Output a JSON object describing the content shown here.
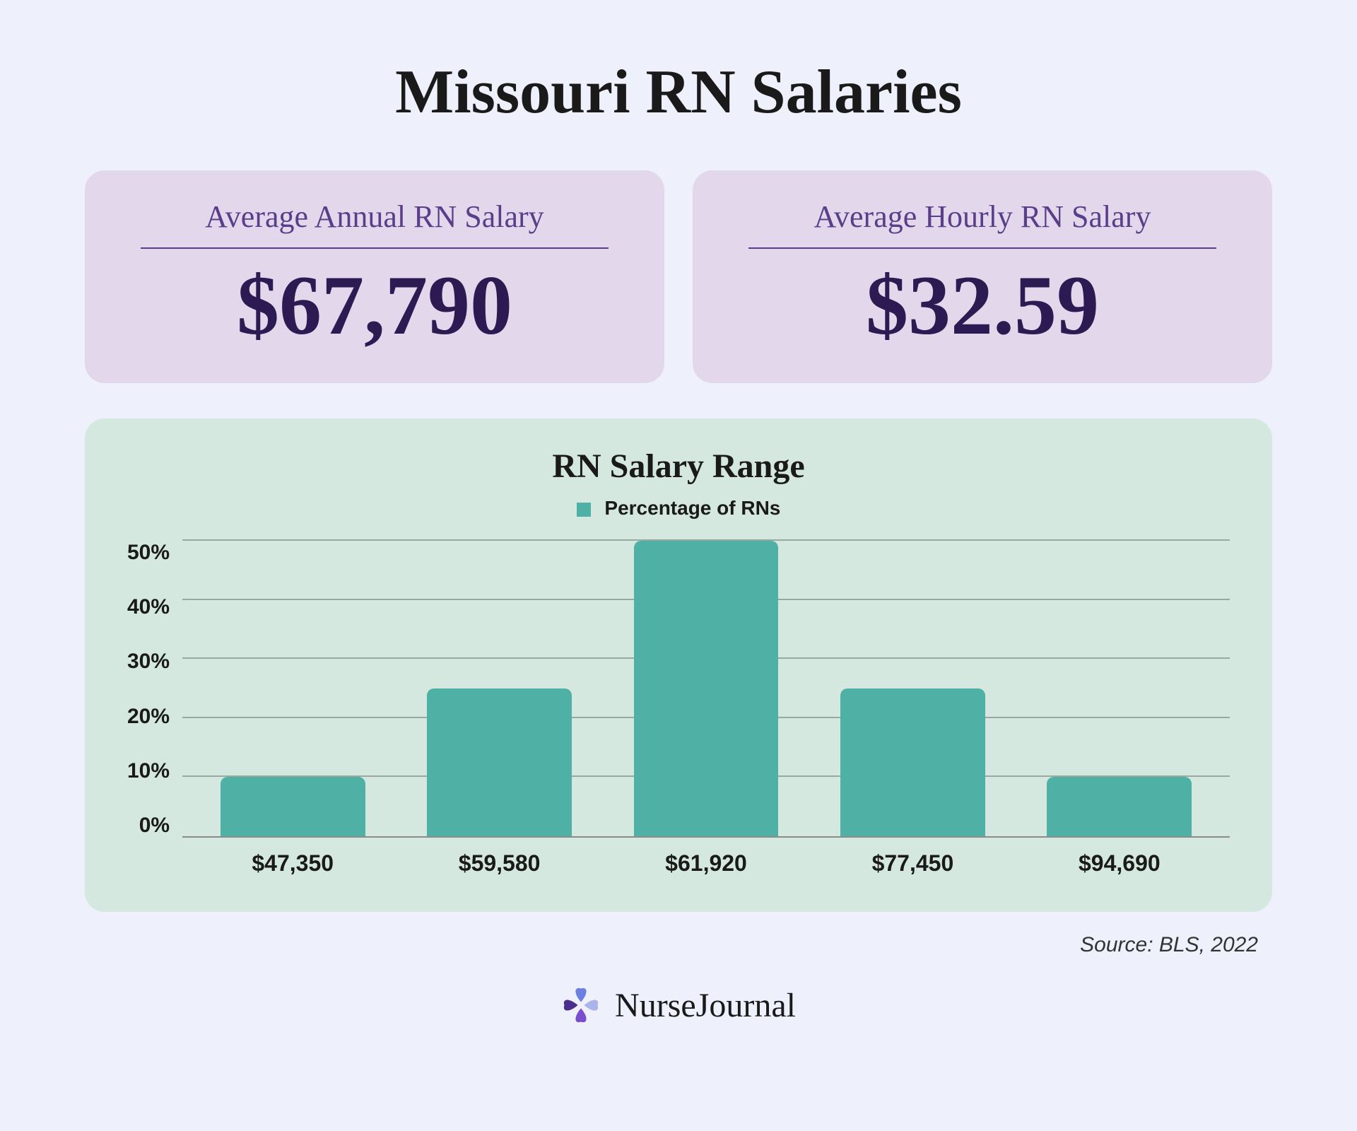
{
  "title": "Missouri RN Salaries",
  "cards": {
    "annual": {
      "label": "Average Annual RN Salary",
      "value": "$67,790"
    },
    "hourly": {
      "label": "Average Hourly RN Salary",
      "value": "$32.59"
    }
  },
  "card_style": {
    "background": "#e3d7ec",
    "label_color": "#5a3e8a",
    "value_color": "#2d1a52",
    "divider_color": "#5a3e8a",
    "label_fontsize": 44,
    "value_fontsize": 120
  },
  "chart": {
    "type": "bar",
    "title": "RN Salary Range",
    "legend_label": "Percentage of RNs",
    "categories": [
      "$47,350",
      "$59,580",
      "$61,920",
      "$77,450",
      "$94,690"
    ],
    "values": [
      10,
      25,
      50,
      25,
      10
    ],
    "bar_color": "#4fb0a5",
    "bar_width_pct": 70,
    "bar_border_radius": 10,
    "panel_background": "#d4e8df",
    "grid_color": "#9aa8a1",
    "axis_line_color": "#8c8c8c",
    "ylim": [
      0,
      50
    ],
    "ytick_step": 10,
    "y_ticks": [
      "50%",
      "40%",
      "30%",
      "20%",
      "10%",
      "0%"
    ],
    "title_fontsize": 48,
    "legend_fontsize": 28,
    "tick_fontsize": 30,
    "xlabel_fontsize": 32
  },
  "source": "Source: BLS, 2022",
  "brand": {
    "name": "NurseJournal",
    "logo_colors": {
      "petal1": "#6b7fe3",
      "petal2": "#aab4ea",
      "petal3": "#7a4dcf",
      "petal4": "#4a2f8f"
    }
  },
  "page_background": "#eef0fb"
}
